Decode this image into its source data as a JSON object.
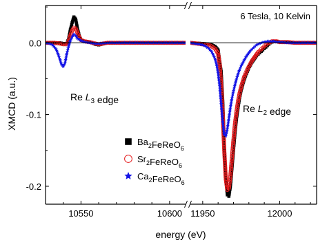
{
  "chart_data": {
    "type": "scatter",
    "title": "6 Tesla, 10 Kelvin",
    "xlabel": "energy (eV)",
    "ylabel": "XMCD (a.u.)",
    "ylim": [
      -0.225,
      0.052
    ],
    "yticks": [
      0.0,
      -0.1,
      -0.2
    ],
    "ytick_labels": [
      "0.0",
      "-0.1",
      "-0.2"
    ],
    "grid": false,
    "broken_x_axis": true,
    "panels": [
      {
        "xlim": [
          10530,
          10609
        ],
        "xticks": [
          10550,
          10600
        ],
        "xtick_labels": [
          "10550",
          "10600"
        ]
      },
      {
        "xlim": [
          11942,
          12024
        ],
        "xticks": [
          11950,
          12000
        ],
        "xtick_labels": [
          "11950",
          "12000"
        ]
      }
    ],
    "annotations": [
      {
        "text_parts": [
          {
            "t": "Re "
          },
          {
            "t": "L",
            "style": "italic"
          },
          {
            "t": "3",
            "style": "sub"
          },
          {
            "t": " edge"
          }
        ]
      },
      {
        "text_parts": [
          {
            "t": "Re "
          },
          {
            "t": "L",
            "style": "italic"
          },
          {
            "t": "2",
            "style": "sub"
          },
          {
            "t": " edge"
          }
        ]
      }
    ],
    "legend": {
      "placement": "lower-left-center",
      "entries": [
        {
          "parts": [
            {
              "t": "Ba"
            },
            {
              "t": "2",
              "style": "sub"
            },
            {
              "t": "FeReO"
            },
            {
              "t": "6",
              "style": "sub"
            }
          ],
          "color": "#000000",
          "marker": "square"
        },
        {
          "parts": [
            {
              "t": "Sr"
            },
            {
              "t": "2",
              "style": "sub"
            },
            {
              "t": "FeReO"
            },
            {
              "t": "6",
              "style": "sub"
            }
          ],
          "color": "#e41a1c",
          "marker": "open-circle"
        },
        {
          "parts": [
            {
              "t": "Ca"
            },
            {
              "t": "2",
              "style": "sub"
            },
            {
              "t": "FeReO"
            },
            {
              "t": "6",
              "style": "sub"
            }
          ],
          "color": "#1414e6",
          "marker": "star"
        }
      ]
    },
    "series": [
      {
        "name": "Ba2FeReO6",
        "color": "#000000",
        "marker": "square",
        "marker_size": 4,
        "panels": [
          {
            "x": [
              10530,
              10535,
              10538,
              10540,
              10542,
              10543,
              10544,
              10545,
              10546,
              10547,
              10548,
              10549,
              10550,
              10552,
              10555,
              10558,
              10560,
              10565,
              10570,
              10580,
              10590,
              10600,
              10609
            ],
            "y": [
              0,
              0,
              0,
              -0.001,
              -0.001,
              0.005,
              0.018,
              0.028,
              0.036,
              0.033,
              0.02,
              0.01,
              0.004,
              0.002,
              0.001,
              -0.002,
              -0.003,
              0,
              0,
              0,
              0,
              0,
              0
            ]
          },
          {
            "x": [
              11942,
              11950,
              11955,
              11958,
              11960,
              11962,
              11963,
              11964,
              11965,
              11966,
              11967,
              11968,
              11969,
              11970,
              11971,
              11972,
              11973,
              11974,
              11975,
              11976,
              11977,
              11978,
              11979,
              11980,
              11981,
              11982,
              11983,
              11984,
              11985,
              11986,
              11987,
              11988,
              11989,
              11990,
              11991,
              11992,
              11993,
              11994,
              11995,
              11996,
              11997,
              11998,
              12000,
              12005,
              12010,
              12015,
              12020,
              12024
            ],
            "y": [
              0,
              -0.001,
              -0.002,
              -0.005,
              -0.01,
              -0.04,
              -0.08,
              -0.14,
              -0.19,
              -0.212,
              -0.214,
              -0.2,
              -0.175,
              -0.15,
              -0.125,
              -0.105,
              -0.09,
              -0.076,
              -0.066,
              -0.058,
              -0.051,
              -0.045,
              -0.04,
              -0.035,
              -0.031,
              -0.027,
              -0.024,
              -0.021,
              -0.018,
              -0.016,
              -0.014,
              -0.012,
              -0.01,
              -0.008,
              -0.006,
              -0.004,
              -0.002,
              0,
              0.001,
              0.002,
              0.002,
              0.002,
              0.001,
              0.001,
              0,
              0,
              0,
              0
            ]
          }
        ]
      },
      {
        "name": "Sr2FeReO6",
        "color": "#e41a1c",
        "marker": "open-circle",
        "marker_size": 4,
        "panels": [
          {
            "x": [
              10530,
              10535,
              10538,
              10540,
              10542,
              10543,
              10544,
              10545,
              10546,
              10547,
              10548,
              10549,
              10550,
              10552,
              10555,
              10558,
              10560,
              10565,
              10570,
              10580,
              10590,
              10600,
              10609
            ],
            "y": [
              0,
              0,
              -0.001,
              -0.002,
              -0.002,
              0.002,
              0.01,
              0.017,
              0.021,
              0.02,
              0.014,
              0.008,
              0.004,
              0.002,
              0.001,
              -0.001,
              -0.002,
              0,
              0,
              0,
              0,
              0,
              0
            ]
          },
          {
            "x": [
              11942,
              11950,
              11955,
              11958,
              11960,
              11961,
              11962,
              11963,
              11964,
              11965,
              11966,
              11967,
              11968,
              11969,
              11970,
              11971,
              11972,
              11973,
              11974,
              11975,
              11976,
              11977,
              11978,
              11979,
              11980,
              11981,
              11982,
              11983,
              11984,
              11985,
              11986,
              11987,
              11988,
              11989,
              11990,
              11991,
              11992,
              11993,
              11994,
              11995,
              11996,
              11998,
              12000,
              12005,
              12010,
              12015,
              12020,
              12024
            ],
            "y": [
              0,
              -0.002,
              -0.004,
              -0.008,
              -0.015,
              -0.03,
              -0.06,
              -0.1,
              -0.15,
              -0.19,
              -0.205,
              -0.203,
              -0.185,
              -0.16,
              -0.135,
              -0.112,
              -0.095,
              -0.081,
              -0.07,
              -0.061,
              -0.054,
              -0.047,
              -0.042,
              -0.037,
              -0.033,
              -0.029,
              -0.025,
              -0.022,
              -0.019,
              -0.016,
              -0.013,
              -0.011,
              -0.009,
              -0.007,
              -0.005,
              -0.003,
              -0.001,
              0,
              0.001,
              0.002,
              0.002,
              0.002,
              0.001,
              0.001,
              0,
              0,
              0,
              0
            ]
          }
        ]
      },
      {
        "name": "Ca2FeReO6",
        "color": "#1414e6",
        "marker": "star",
        "marker_size": 4,
        "panels": [
          {
            "x": [
              10530,
              10532,
              10534,
              10536,
              10537,
              10538,
              10539,
              10540,
              10541,
              10542,
              10543,
              10544,
              10545,
              10546,
              10547,
              10548,
              10550,
              10552,
              10555,
              10558,
              10560,
              10565,
              10570,
              10580,
              10590,
              10600,
              10609
            ],
            "y": [
              0,
              -0.001,
              -0.003,
              -0.009,
              -0.015,
              -0.022,
              -0.03,
              -0.033,
              -0.028,
              -0.015,
              -0.005,
              0.003,
              0.008,
              0.012,
              0.01,
              0.006,
              0.003,
              0.001,
              0,
              -0.001,
              -0.001,
              0,
              0,
              0,
              0,
              0,
              0
            ]
          },
          {
            "x": [
              11942,
              11945,
              11948,
              11950,
              11952,
              11954,
              11956,
              11958,
              11959,
              11960,
              11961,
              11962,
              11963,
              11964,
              11965,
              11966,
              11967,
              11968,
              11969,
              11970,
              11971,
              11972,
              11973,
              11974,
              11975,
              11976,
              11977,
              11978,
              11979,
              11980,
              11981,
              11982,
              11983,
              11984,
              11985,
              11986,
              11987,
              11988,
              11990,
              11992,
              11994,
              11996,
              11998,
              12000,
              12005,
              12010,
              12015,
              12020,
              12024
            ],
            "y": [
              0,
              -0.001,
              -0.002,
              -0.003,
              -0.005,
              -0.008,
              -0.013,
              -0.022,
              -0.03,
              -0.042,
              -0.06,
              -0.085,
              -0.11,
              -0.128,
              -0.13,
              -0.12,
              -0.105,
              -0.09,
              -0.077,
              -0.067,
              -0.058,
              -0.05,
              -0.043,
              -0.037,
              -0.032,
              -0.028,
              -0.024,
              -0.02,
              -0.017,
              -0.014,
              -0.011,
              -0.009,
              -0.007,
              -0.005,
              -0.003,
              -0.002,
              -0.001,
              0,
              0.001,
              0.002,
              0.002,
              0.002,
              0.001,
              0.001,
              0,
              0,
              0,
              0,
              0
            ]
          }
        ]
      }
    ]
  }
}
